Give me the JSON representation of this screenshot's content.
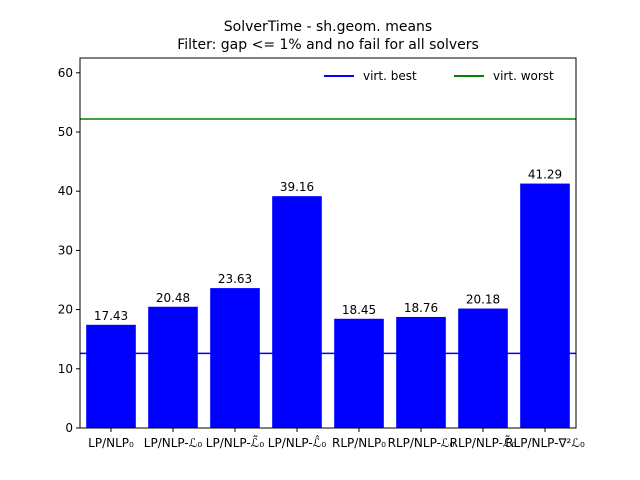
{
  "chart_data": {
    "type": "bar",
    "title": "SolverTime - sh.geom. means",
    "subtitle": "Filter: gap <= 1% and no fail for all solvers",
    "xlabel": "",
    "ylabel": "",
    "ylim": [
      0,
      62.5
    ],
    "yticks": [
      0,
      10,
      20,
      30,
      40,
      50,
      60
    ],
    "grid": false,
    "categories": [
      "LP/NLP₀",
      "LP/NLP-ℒ₀",
      "LP/NLP-ℒ̃₀",
      "LP/NLP-ℒ̂₀",
      "RLP/NLP₀",
      "RLP/NLP-ℒ₀",
      "RLP/NLP-ℒ̃₀",
      "RLP/NLP-∇²ℒ₀"
    ],
    "values": [
      17.43,
      20.48,
      23.63,
      39.16,
      18.45,
      18.76,
      20.18,
      41.29
    ],
    "value_labels": [
      "17.43",
      "20.48",
      "23.63",
      "39.16",
      "18.45",
      "18.76",
      "20.18",
      "41.29"
    ],
    "bar_color": "#0000ff",
    "reference_lines": [
      {
        "name": "virt. best",
        "value": 12.6,
        "color": "#0000ff"
      },
      {
        "name": "virt. worst",
        "value": 52.2,
        "color": "#008000"
      }
    ],
    "legend_placement": "top-right"
  }
}
